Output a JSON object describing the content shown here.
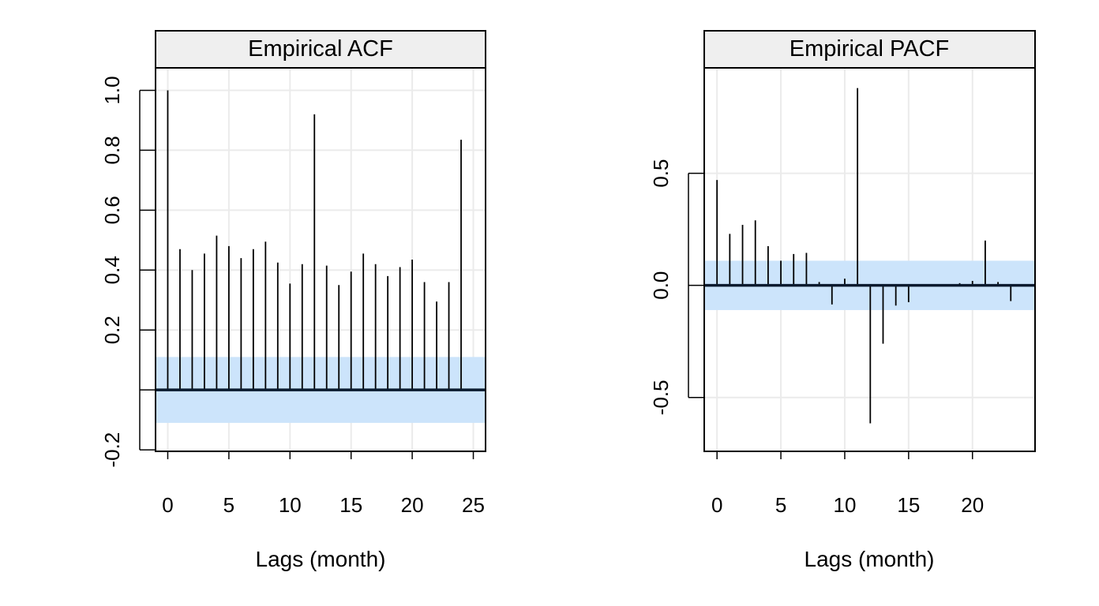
{
  "chart_data": [
    {
      "type": "bar",
      "title": "Empirical ACF",
      "xlabel": "Lags (month)",
      "ylabel": "",
      "xlim": [
        -1,
        26
      ],
      "ylim": [
        -0.205,
        1.075
      ],
      "xticks": [
        0,
        5,
        10,
        15,
        20,
        25
      ],
      "xtick_labels": [
        "0",
        "5",
        "10",
        "15",
        "20",
        "25"
      ],
      "yticks": [
        -0.2,
        0.0,
        0.2,
        0.4,
        0.6,
        0.8,
        1.0
      ],
      "ytick_labels": [
        "-0.2",
        "",
        "0.2",
        "0.4",
        "0.6",
        "0.8",
        "1.0"
      ],
      "grid": true,
      "confidence_band": [
        -0.11,
        0.11
      ],
      "x": [
        0,
        1,
        2,
        3,
        4,
        5,
        6,
        7,
        8,
        9,
        10,
        11,
        12,
        13,
        14,
        15,
        16,
        17,
        18,
        19,
        20,
        21,
        22,
        23,
        24
      ],
      "values": [
        1.0,
        0.47,
        0.4,
        0.455,
        0.515,
        0.48,
        0.44,
        0.47,
        0.495,
        0.425,
        0.355,
        0.42,
        0.92,
        0.415,
        0.35,
        0.395,
        0.455,
        0.42,
        0.38,
        0.41,
        0.435,
        0.36,
        0.295,
        0.36,
        0.835
      ],
      "colors": {
        "band": "#cce4fb",
        "bar": "#000000",
        "zero_line": "#0a1a2e",
        "grid": "#ebebeb",
        "strip": "#efefef"
      }
    },
    {
      "type": "bar",
      "title": "Empirical PACF",
      "xlabel": "Lags (month)",
      "ylabel": "",
      "xlim": [
        -1,
        24.9
      ],
      "ylim": [
        -0.74,
        0.97
      ],
      "xticks": [
        0,
        5,
        10,
        15,
        20
      ],
      "xtick_labels": [
        "0",
        "5",
        "10",
        "15",
        "20"
      ],
      "yticks": [
        -0.5,
        0.0,
        0.5
      ],
      "ytick_labels": [
        "-0.5",
        "0.0",
        "0.5"
      ],
      "grid": true,
      "confidence_band": [
        -0.11,
        0.11
      ],
      "x": [
        0,
        1,
        2,
        3,
        4,
        5,
        6,
        7,
        8,
        9,
        10,
        11,
        12,
        13,
        14,
        15,
        16,
        17,
        18,
        19,
        20,
        21,
        22,
        23
      ],
      "values": [
        0.47,
        0.23,
        0.27,
        0.29,
        0.175,
        0.11,
        0.14,
        0.145,
        0.015,
        -0.085,
        0.03,
        0.88,
        -0.615,
        -0.26,
        -0.09,
        -0.075,
        0.005,
        0.005,
        0.0,
        0.01,
        0.02,
        0.2,
        0.015,
        -0.07
      ],
      "colors": {
        "band": "#cce4fb",
        "bar": "#000000",
        "zero_line": "#0a1a2e",
        "grid": "#ebebeb",
        "strip": "#efefef"
      }
    }
  ]
}
